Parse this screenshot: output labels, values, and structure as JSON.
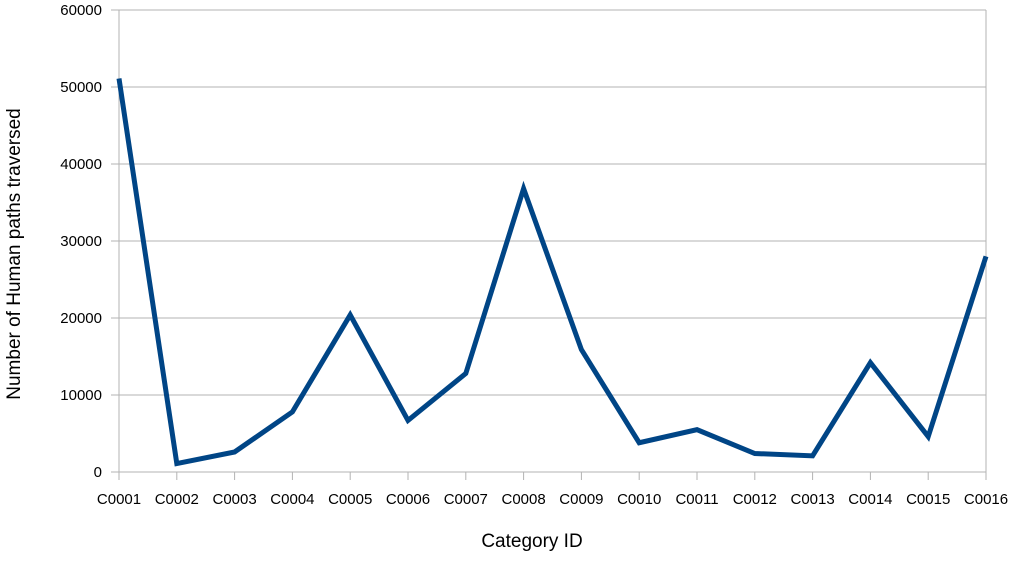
{
  "chart_data": {
    "type": "line",
    "title": "",
    "xlabel": "Category ID",
    "ylabel": "Number of Human paths traversed",
    "ylim": [
      0,
      60000
    ],
    "yticks": [
      0,
      10000,
      20000,
      30000,
      40000,
      50000,
      60000
    ],
    "grid": true,
    "legend": "none",
    "categories": [
      "C0001",
      "C0002",
      "C0003",
      "C0004",
      "C0005",
      "C0006",
      "C0007",
      "C0008",
      "C0009",
      "C0010",
      "C0011",
      "C0012",
      "C0013",
      "C0014",
      "C0015",
      "C0016"
    ],
    "series": [
      {
        "color": "#004586",
        "values": [
          51100,
          1100,
          2600,
          7800,
          20400,
          6700,
          12800,
          36800,
          15900,
          3800,
          5500,
          2400,
          2100,
          14200,
          4600,
          28000
        ]
      }
    ]
  }
}
